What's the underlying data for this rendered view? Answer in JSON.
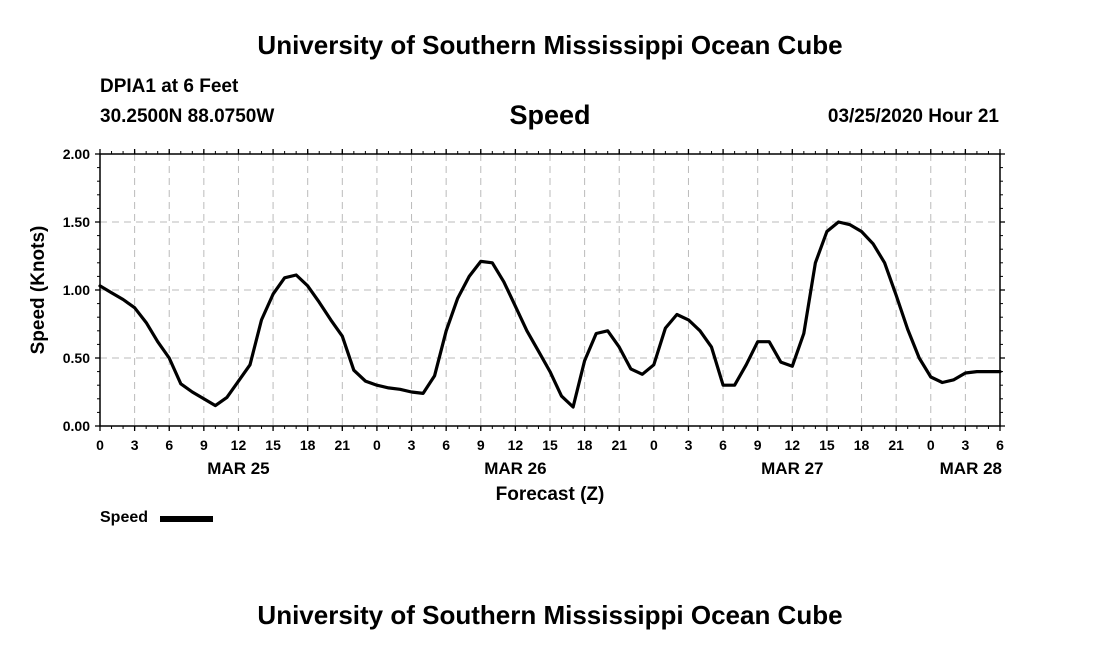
{
  "header": {
    "title": "University of Southern Mississippi Ocean Cube",
    "station": "DPIA1 at 6 Feet",
    "coordinates": "30.2500N 88.0750W",
    "chart_title": "Speed",
    "timestamp": "03/25/2020 Hour 21"
  },
  "footer": {
    "title": "University of Southern Mississippi Ocean Cube"
  },
  "legend": {
    "label": "Speed"
  },
  "colors": {
    "line": "#000000",
    "grid": "#bbbbbb",
    "background": "#ffffff"
  },
  "chart_data": {
    "type": "line",
    "title": "Speed",
    "xlabel": "Forecast (Z)",
    "ylabel": "Speed (Knots)",
    "ylim": [
      0,
      2
    ],
    "xlim_hours": [
      0,
      78
    ],
    "yticks": [
      "0.00",
      "0.50",
      "1.00",
      "1.50",
      "2.00"
    ],
    "xticks": [
      "0",
      "3",
      "6",
      "9",
      "12",
      "15",
      "18",
      "21",
      "0",
      "3",
      "6",
      "9",
      "12",
      "15",
      "18",
      "21",
      "0",
      "3",
      "6",
      "9",
      "12",
      "15",
      "18",
      "21",
      "0",
      "3",
      "6"
    ],
    "date_labels": [
      {
        "label": "MAR 25",
        "hour": 12
      },
      {
        "label": "MAR 26",
        "hour": 36
      },
      {
        "label": "MAR 27",
        "hour": 60
      },
      {
        "label": "MAR 28",
        "hour": 78
      }
    ],
    "grid": true,
    "legend": "bottom-left",
    "series": [
      {
        "name": "Speed",
        "x_hours": [
          0,
          1,
          2,
          3,
          4,
          5,
          6,
          7,
          8,
          9,
          10,
          11,
          12,
          13,
          14,
          15,
          16,
          17,
          18,
          19,
          20,
          21,
          22,
          23,
          24,
          25,
          26,
          27,
          28,
          29,
          30,
          31,
          32,
          33,
          34,
          35,
          36,
          37,
          38,
          39,
          40,
          41,
          42,
          43,
          44,
          45,
          46,
          47,
          48,
          49,
          50,
          51,
          52,
          53,
          54,
          55,
          56,
          57,
          58,
          59,
          60,
          61,
          62,
          63,
          64,
          65,
          66,
          67,
          68,
          69,
          70,
          71,
          72,
          73,
          74,
          75,
          76,
          77,
          78
        ],
        "values": [
          1.03,
          0.98,
          0.93,
          0.87,
          0.76,
          0.62,
          0.5,
          0.31,
          0.25,
          0.2,
          0.15,
          0.21,
          0.33,
          0.45,
          0.78,
          0.97,
          1.09,
          1.11,
          1.03,
          0.91,
          0.78,
          0.66,
          0.41,
          0.33,
          0.3,
          0.28,
          0.27,
          0.25,
          0.24,
          0.37,
          0.7,
          0.94,
          1.1,
          1.21,
          1.2,
          1.06,
          0.88,
          0.7,
          0.55,
          0.4,
          0.22,
          0.14,
          0.48,
          0.68,
          0.7,
          0.58,
          0.42,
          0.38,
          0.45,
          0.72,
          0.82,
          0.78,
          0.7,
          0.58,
          0.3,
          0.3,
          0.45,
          0.62,
          0.62,
          0.47,
          0.44,
          0.68,
          1.2,
          1.43,
          1.5,
          1.48,
          1.43,
          1.34,
          1.2,
          0.96,
          0.71,
          0.5,
          0.36,
          0.32,
          0.34,
          0.39,
          0.4,
          0.4,
          0.4
        ]
      }
    ]
  }
}
